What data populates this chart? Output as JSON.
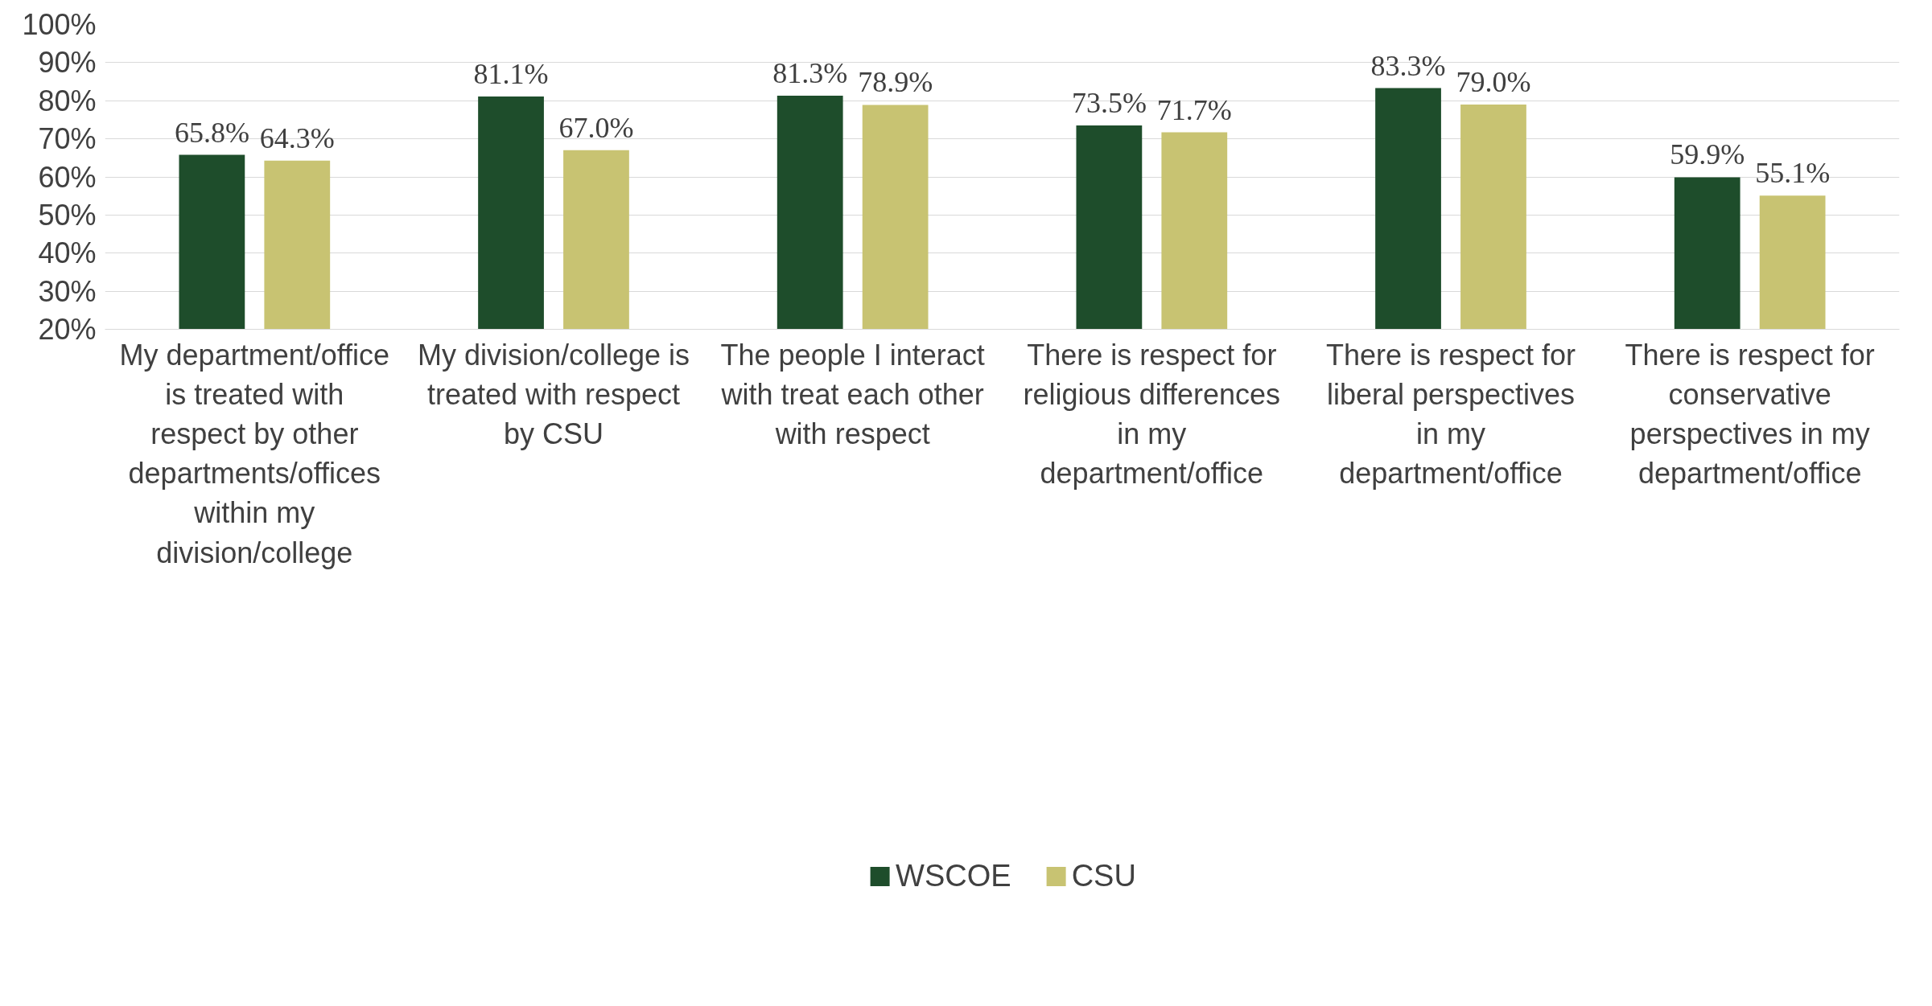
{
  "chart_data": {
    "type": "bar",
    "categories": [
      "My department/office is treated with respect by other departments/offices within my division/college",
      "My division/college is treated with respect by CSU",
      "The people I interact with treat each other with respect",
      "There is respect for religious differences in my department/office",
      "There is respect for liberal perspectives in my department/office",
      "There is respect for conservative perspectives in my department/office"
    ],
    "series": [
      {
        "name": "WSCOE",
        "color": "#1e4d2b",
        "values": [
          65.8,
          81.1,
          81.3,
          73.5,
          83.3,
          59.9
        ]
      },
      {
        "name": "CSU",
        "color": "#c8c372",
        "values": [
          64.3,
          67.0,
          78.9,
          71.7,
          79.0,
          55.1
        ]
      }
    ],
    "ylim": [
      20,
      100
    ],
    "yticks": [
      {
        "value": 20,
        "label": "20%"
      },
      {
        "value": 30,
        "label": "30%"
      },
      {
        "value": 40,
        "label": "40%"
      },
      {
        "value": 50,
        "label": "50%"
      },
      {
        "value": 60,
        "label": "60%"
      },
      {
        "value": 70,
        "label": "70%"
      },
      {
        "value": 80,
        "label": "80%"
      },
      {
        "value": 90,
        "label": "90%"
      },
      {
        "value": 100,
        "label": "100%"
      }
    ],
    "value_labels": [
      [
        "65.8%",
        "81.1%",
        "81.3%",
        "73.5%",
        "83.3%",
        "59.9%"
      ],
      [
        "64.3%",
        "67.0%",
        "78.9%",
        "71.7%",
        "79.0%",
        "55.1%"
      ]
    ],
    "grid": "y",
    "legend": "bottom"
  }
}
